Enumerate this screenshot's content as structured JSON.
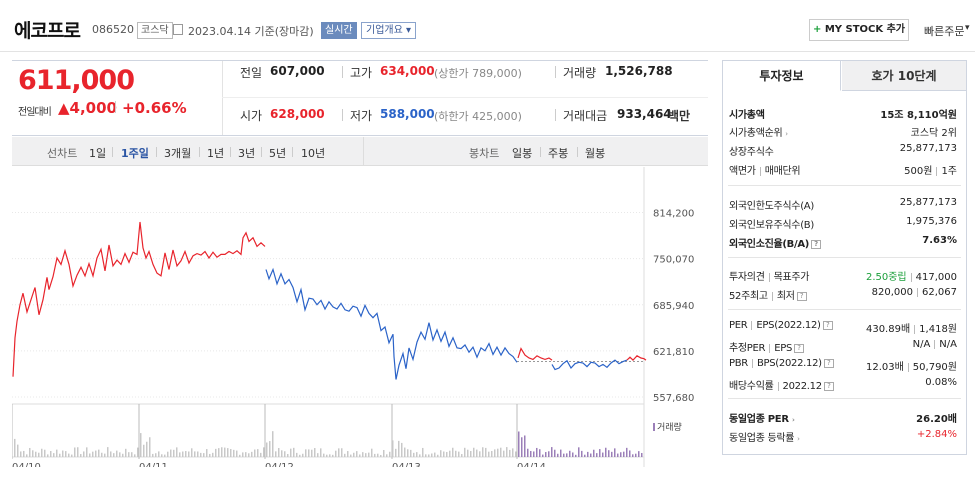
{
  "header": {
    "company": "에코프로",
    "code": "086520",
    "market": "코스닥",
    "date": "2023.04.14 기준(장마감)",
    "live": "실시간",
    "overview": "기업개요",
    "overview_caret": "▾",
    "mystock": "MY STOCK 추가",
    "mystock_plus": "+",
    "quick": "빠른주문",
    "quick_caret": "▾"
  },
  "quote": {
    "price": "611,000",
    "change_label": "전일대비",
    "change_arrow": "▲",
    "change": "4,000",
    "change_pct": "+0.66%",
    "prev_label": "전일",
    "prev": "607,000",
    "high_label": "고가",
    "high": "634,000",
    "upper_label": "(상한가 789,000)",
    "volume_label": "거래량",
    "volume": "1,526,788",
    "open_label": "시가",
    "open": "628,000",
    "low_label": "저가",
    "low": "588,000",
    "lower_label": "(하한가 425,000)",
    "amount_label": "거래대금",
    "amount": "933,464",
    "amount_unit": "백만"
  },
  "tabs": {
    "line_label": "선차트",
    "line": [
      "1일",
      "1주일",
      "3개월",
      "1년",
      "3년",
      "5년",
      "10년"
    ],
    "candle_label": "봉차트",
    "candle": [
      "일봉",
      "주봉",
      "월봉"
    ]
  },
  "chart_data": {
    "type": "line",
    "title": "",
    "xlabel": "",
    "ylabel": "",
    "x_ticks": [
      "04/10",
      "04/11",
      "04/12",
      "04/13",
      "04/14"
    ],
    "y_ticks": [
      "814,200",
      "750,070",
      "685,940",
      "621,810",
      "557,680"
    ],
    "ylim": [
      548000,
      826000
    ],
    "prev_close": 607000,
    "volume_label": "거래량",
    "series": [
      {
        "name": "up",
        "color": "#e8242c",
        "values": [
          [
            0,
            586000
          ],
          [
            2,
            640000
          ],
          [
            4,
            663000
          ],
          [
            7,
            686000
          ],
          [
            10,
            702000
          ],
          [
            14,
            676000
          ],
          [
            18,
            693000
          ],
          [
            22,
            710000
          ],
          [
            26,
            672000
          ],
          [
            30,
            693000
          ],
          [
            34,
            724000
          ],
          [
            36,
            707000
          ],
          [
            40,
            725000
          ],
          [
            44,
            751000
          ],
          [
            48,
            742000
          ],
          [
            52,
            761000
          ],
          [
            56,
            742000
          ],
          [
            60,
            712000
          ],
          [
            64,
            727000
          ],
          [
            68,
            738000
          ],
          [
            72,
            726000
          ],
          [
            76,
            743000
          ],
          [
            80,
            726000
          ],
          [
            84,
            751000
          ],
          [
            88,
            763000
          ],
          [
            92,
            733000
          ],
          [
            96,
            769000
          ],
          [
            100,
            740000
          ],
          [
            104,
            748000
          ],
          [
            108,
            742000
          ],
          [
            112,
            757000
          ],
          [
            116,
            745000
          ],
          [
            120,
            759000
          ],
          [
            124,
            756000
          ],
          [
            127,
            801000
          ],
          [
            130,
            765000
          ],
          [
            133,
            751000
          ],
          [
            136,
            760000
          ],
          [
            140,
            742000
          ],
          [
            144,
            730000
          ],
          [
            148,
            726000
          ],
          [
            152,
            758000
          ],
          [
            156,
            735000
          ],
          [
            160,
            762000
          ],
          [
            164,
            740000
          ],
          [
            168,
            747000
          ],
          [
            172,
            760000
          ],
          [
            176,
            744000
          ],
          [
            180,
            754000
          ],
          [
            184,
            757000
          ],
          [
            188,
            755000
          ],
          [
            192,
            760000
          ],
          [
            196,
            751000
          ],
          [
            200,
            759000
          ],
          [
            204,
            752000
          ],
          [
            208,
            756000
          ],
          [
            212,
            756000
          ],
          [
            216,
            760000
          ],
          [
            220,
            757000
          ],
          [
            224,
            761000
          ],
          [
            228,
            756000
          ],
          [
            230,
            779000
          ],
          [
            233,
            786000
          ],
          [
            236,
            774000
          ],
          [
            240,
            779000
          ],
          [
            244,
            767000
          ],
          [
            248,
            772000
          ],
          [
            252,
            767000
          ]
        ]
      },
      {
        "name": "down",
        "color": "#2b63c8",
        "values": [
          [
            253,
            735000
          ],
          [
            256,
            722000
          ],
          [
            260,
            735000
          ],
          [
            264,
            715000
          ],
          [
            268,
            729000
          ],
          [
            272,
            715000
          ],
          [
            276,
            721000
          ],
          [
            280,
            710000
          ],
          [
            284,
            690000
          ],
          [
            288,
            707000
          ],
          [
            292,
            679000
          ],
          [
            296,
            695000
          ],
          [
            300,
            694000
          ],
          [
            304,
            686000
          ],
          [
            308,
            692000
          ],
          [
            312,
            680000
          ],
          [
            316,
            690000
          ],
          [
            320,
            683000
          ],
          [
            324,
            680000
          ],
          [
            328,
            688000
          ],
          [
            332,
            679000
          ],
          [
            336,
            677000
          ],
          [
            340,
            684000
          ],
          [
            344,
            682000
          ],
          [
            348,
            670000
          ],
          [
            352,
            685000
          ],
          [
            356,
            674000
          ],
          [
            360,
            668000
          ],
          [
            364,
            674000
          ],
          [
            368,
            650000
          ],
          [
            372,
            655000
          ],
          [
            376,
            633000
          ],
          [
            380,
            645000
          ],
          [
            381,
            614000
          ],
          [
            383,
            582000
          ],
          [
            386,
            602000
          ],
          [
            390,
            618000
          ],
          [
            393,
            597000
          ],
          [
            396,
            626000
          ],
          [
            400,
            610000
          ],
          [
            404,
            634000
          ],
          [
            408,
            648000
          ],
          [
            412,
            638000
          ],
          [
            416,
            661000
          ],
          [
            420,
            637000
          ],
          [
            424,
            651000
          ],
          [
            428,
            635000
          ],
          [
            432,
            648000
          ],
          [
            436,
            628000
          ],
          [
            440,
            640000
          ],
          [
            444,
            626000
          ],
          [
            448,
            625000
          ],
          [
            452,
            630000
          ],
          [
            456,
            620000
          ],
          [
            460,
            627000
          ],
          [
            464,
            613000
          ],
          [
            468,
            626000
          ],
          [
            472,
            622000
          ],
          [
            476,
            632000
          ],
          [
            480,
            617000
          ],
          [
            484,
            627000
          ],
          [
            488,
            616000
          ],
          [
            492,
            626000
          ],
          [
            496,
            618000
          ],
          [
            500,
            614000
          ],
          [
            504,
            606000
          ]
        ]
      },
      {
        "name": "up2",
        "color": "#e8242c",
        "values": [
          [
            505,
            612000
          ],
          [
            508,
            625000
          ],
          [
            512,
            616000
          ],
          [
            516,
            612000
          ],
          [
            520,
            610000
          ],
          [
            524,
            615000
          ],
          [
            528,
            612000
          ],
          [
            532,
            610000
          ],
          [
            536,
            612000
          ],
          [
            539,
            609000
          ]
        ]
      },
      {
        "name": "down2",
        "color": "#2b63c8",
        "values": [
          [
            539,
            603000
          ],
          [
            542,
            596000
          ],
          [
            546,
            598000
          ],
          [
            550,
            604000
          ],
          [
            554,
            608000
          ],
          [
            558,
            598000
          ],
          [
            562,
            604000
          ],
          [
            566,
            606000
          ],
          [
            570,
            605000
          ],
          [
            574,
            600000
          ],
          [
            578,
            606000
          ],
          [
            582,
            605000
          ],
          [
            586,
            600000
          ],
          [
            590,
            603000
          ],
          [
            594,
            599000
          ],
          [
            598,
            605000
          ],
          [
            602,
            609000
          ],
          [
            606,
            604000
          ],
          [
            610,
            607000
          ],
          [
            614,
            609000
          ]
        ]
      },
      {
        "name": "up3",
        "color": "#e8242c",
        "values": [
          [
            614,
            609000
          ],
          [
            617,
            613000
          ],
          [
            620,
            609000
          ],
          [
            624,
            615000
          ],
          [
            628,
            612000
          ],
          [
            631,
            611000
          ],
          [
            633,
            609000
          ]
        ]
      }
    ]
  },
  "side": {
    "tab1": "투자정보",
    "tab2": "호가 10단계",
    "mcap_label": "시가총액",
    "mcap": "15조 8,110억원",
    "rank_label": "시가총액순위",
    "rank": "코스닥 2위",
    "shares_label": "상장주식수",
    "shares": "25,877,173",
    "face_label": "액면가",
    "unit_label": "매매단위",
    "face": "500원",
    "unit": "1주",
    "flimit_label": "외국인한도주식수(A)",
    "flimit": "25,877,173",
    "fhold_label": "외국인보유주식수(B)",
    "fhold": "1,975,376",
    "frate_label": "외국인소진율(B/A)",
    "frate": "7.63%",
    "opinion_label": "투자의견",
    "target_label": "목표주가",
    "opinion": "2.50중립",
    "target": "417,000",
    "w52_label": "52주최고",
    "low52_label": "최저",
    "w52high": "820,000",
    "w52low": "62,067",
    "per_label": "PER",
    "eps_label": "EPS(2022.12)",
    "per": "430.89배",
    "eps": "1,418원",
    "eper_label": "추정PER",
    "eeps_label": "EPS",
    "eper": "N/A",
    "eeps": "N/A",
    "pbr_label": "PBR",
    "bps_label": "BPS(2022.12)",
    "pbr": "12.03배",
    "bps": "50,790원",
    "div_label": "배당수익률",
    "div_date": "2022.12",
    "div": "0.08%",
    "sper_label": "동일업종 PER",
    "sper": "26.20배",
    "schg_label": "동일업종 등락률",
    "schg": "+2.84%"
  },
  "colors": {
    "up": "#e8242c",
    "down": "#2b63c8",
    "accent": "#2b55a4",
    "green": "#1a9f3a"
  }
}
